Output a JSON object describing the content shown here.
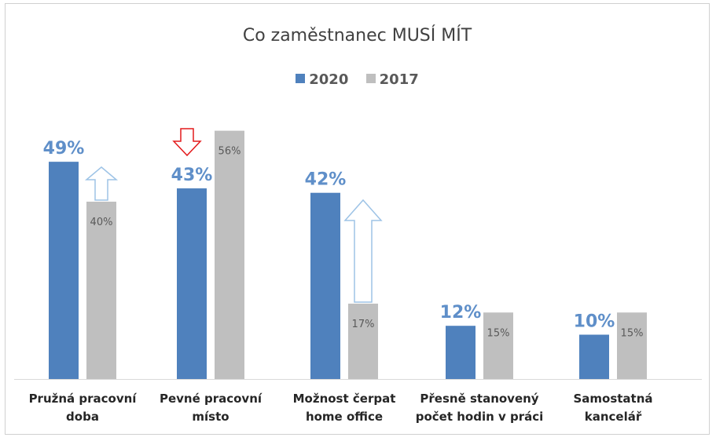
{
  "chart_data": {
    "type": "bar",
    "title": "Co zaměstnanec MUSÍ MÍT",
    "categories": [
      [
        "Pružná pracovní",
        "doba"
      ],
      [
        "Pevné pracovní",
        "místo"
      ],
      [
        "Možnost čerpat",
        "home office"
      ],
      [
        "Přesně stanovený",
        "počet hodin v práci"
      ],
      [
        "Samostatná",
        "kancelář"
      ]
    ],
    "series": [
      {
        "name": "2020",
        "values": [
          49,
          43,
          42,
          12,
          10
        ],
        "labels": [
          "49%",
          "43%",
          "42%",
          "12%",
          "10%"
        ],
        "color": "#4f81bd"
      },
      {
        "name": "2017",
        "values": [
          40,
          56,
          17,
          15,
          15
        ],
        "labels": [
          "40%",
          "56%",
          "17%",
          "15%",
          "15%"
        ],
        "color": "#bfbfbf"
      }
    ],
    "ylim": [
      0,
      56
    ],
    "grid": false,
    "legend_position": "top",
    "annotations": [
      {
        "type": "arrow-up",
        "category_index": 0,
        "color": "#9dc3e6"
      },
      {
        "type": "arrow-down",
        "category_index": 1,
        "color": "#e31a1c"
      },
      {
        "type": "arrow-up",
        "category_index": 2,
        "color": "#9dc3e6"
      }
    ]
  }
}
